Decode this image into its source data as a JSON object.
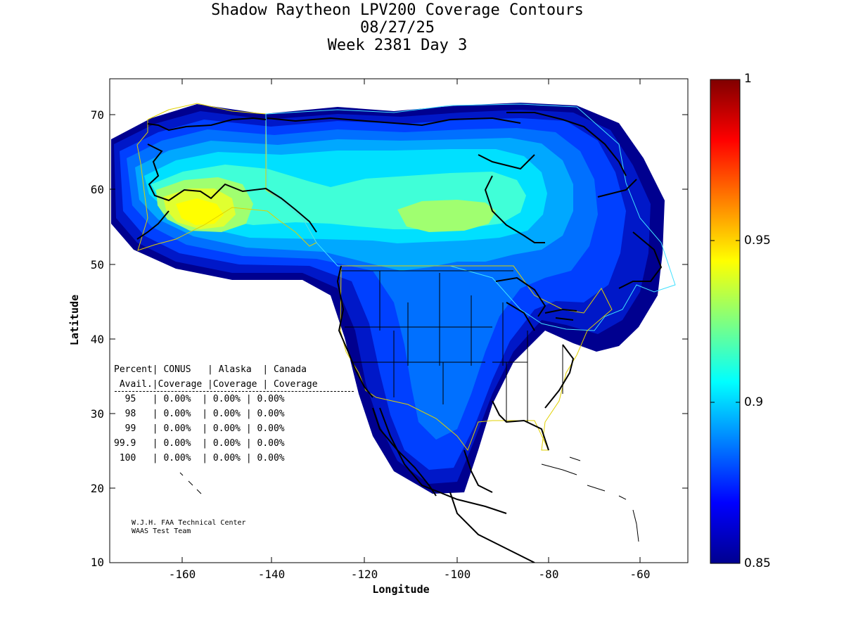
{
  "title": {
    "line1": "Shadow Raytheon LPV200 Coverage Contours",
    "line2": "08/27/25",
    "line3": "Week 2381 Day 3"
  },
  "axes": {
    "xlabel": "Longitude",
    "ylabel": "Latitude",
    "xticks": [
      "-160",
      "-140",
      "-120",
      "-100",
      "-80",
      "-60"
    ],
    "yticks": [
      "70",
      "60",
      "50",
      "40",
      "30",
      "20",
      "10"
    ]
  },
  "colorbar": {
    "labels": [
      "1",
      "0.95",
      "0.9",
      "0.85"
    ]
  },
  "table": {
    "header1": "Percent| CONUS   | Alaska  | Canada",
    "header2": " Avail.|Coverage |Coverage | Coverage",
    "rows": [
      "  95   | 0.00%  | 0.00% | 0.00%",
      "  98   | 0.00%  | 0.00% | 0.00%",
      "  99   | 0.00%  | 0.00% | 0.00%",
      "99.9   | 0.00%  | 0.00% | 0.00%",
      " 100   | 0.00%  | 0.00% | 0.00%"
    ]
  },
  "credit": {
    "line1": "W.J.H. FAA Technical Center",
    "line2": "WAAS Test Team"
  },
  "colors": {
    "dark_blue": "#00008f",
    "blue": "#0040ff",
    "cyan": "#00ffff",
    "green": "#80ff80",
    "yellow": "#ffff00",
    "dark_red": "#800000"
  }
}
